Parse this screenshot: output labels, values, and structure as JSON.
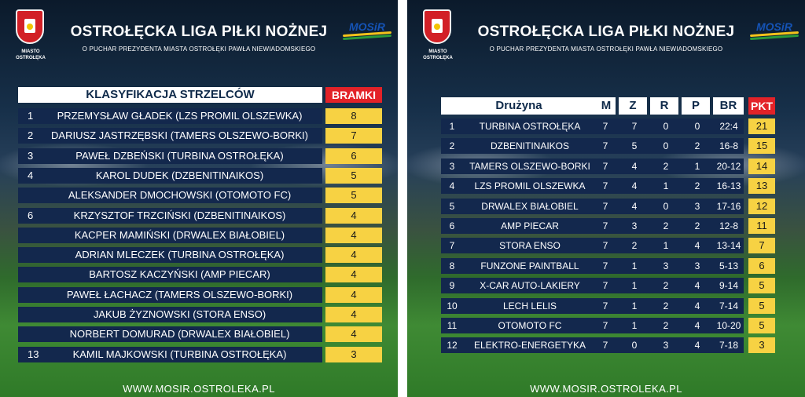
{
  "common": {
    "title": "OSTROŁĘCKA LIGA PIŁKI NOŻNEJ",
    "subtitle": "O PUCHAR PREZYDENTA MIASTA OSTROŁĘKI PAWŁA NIEWIADOMSKIEGO",
    "city_line1": "MIASTO",
    "city_line2": "OSTROŁĘKA",
    "sponsor_logo": "MOSiR",
    "website": "WWW.MOSIR.OSTROLEKA.PL",
    "colors": {
      "navy": "#13284d",
      "yellow": "#f7d243",
      "red": "#e32228"
    }
  },
  "scorers": {
    "heading": "KLASYFIKACJA STRZELCÓW",
    "goals_heading": "BRAMKI",
    "rows": [
      {
        "pos": "1",
        "name": "PRZEMYSŁAW GŁADEK (LZS PROMIL OLSZEWKA)",
        "goals": "8"
      },
      {
        "pos": "2",
        "name": "DARIUSZ JASTRZĘBSKI (TAMERS OLSZEWO-BORKI)",
        "goals": "7"
      },
      {
        "pos": "3",
        "name": "PAWEŁ DZBEŃSKI (TURBINA OSTROŁĘKA)",
        "goals": "6"
      },
      {
        "pos": "4",
        "name": "KAROL DUDEK (DZBENITINAIKOS)",
        "goals": "5"
      },
      {
        "pos": "",
        "name": "ALEKSANDER DMOCHOWSKI (OTOMOTO FC)",
        "goals": "5"
      },
      {
        "pos": "6",
        "name": "KRZYSZTOF TRZCIŃSKI (DZBENITINAIKOS)",
        "goals": "4"
      },
      {
        "pos": "",
        "name": "KACPER MAMIŃSKI (DRWALEX BIAŁOBIEL)",
        "goals": "4"
      },
      {
        "pos": "",
        "name": "ADRIAN MLECZEK (TURBINA OSTROŁĘKA)",
        "goals": "4"
      },
      {
        "pos": "",
        "name": "BARTOSZ KACZYŃSKI (AMP PIECAR)",
        "goals": "4"
      },
      {
        "pos": "",
        "name": "PAWEŁ ŁACHACZ (TAMERS OLSZEWO-BORKI)",
        "goals": "4"
      },
      {
        "pos": "",
        "name": "JAKUB ŻYZNOWSKI (STORA ENSO)",
        "goals": "4"
      },
      {
        "pos": "",
        "name": "NORBERT DOMURAD (DRWALEX BIAŁOBIEL)",
        "goals": "4"
      },
      {
        "pos": "13",
        "name": "KAMIL MAJKOWSKI (TURBINA OSTROŁĘKA)",
        "goals": "3"
      }
    ]
  },
  "standings": {
    "headers": {
      "team": "Drużyna",
      "m": "M",
      "z": "Z",
      "r": "R",
      "p": "P",
      "br": "BR",
      "pkt": "PKT"
    },
    "rows": [
      {
        "pos": "1",
        "team": "TURBINA OSTROŁĘKA",
        "m": "7",
        "z": "7",
        "r": "0",
        "p": "0",
        "br": "22:4",
        "pkt": "21"
      },
      {
        "pos": "2",
        "team": "DZBENITINAIKOS",
        "m": "7",
        "z": "5",
        "r": "0",
        "p": "2",
        "br": "16-8",
        "pkt": "15"
      },
      {
        "pos": "3",
        "team": "TAMERS OLSZEWO-BORKI",
        "m": "7",
        "z": "4",
        "r": "2",
        "p": "1",
        "br": "20-12",
        "pkt": "14"
      },
      {
        "pos": "4",
        "team": "LZS PROMIL OLSZEWKA",
        "m": "7",
        "z": "4",
        "r": "1",
        "p": "2",
        "br": "16-13",
        "pkt": "13"
      },
      {
        "pos": "5",
        "team": "DRWALEX BIAŁOBIEL",
        "m": "7",
        "z": "4",
        "r": "0",
        "p": "3",
        "br": "17-16",
        "pkt": "12"
      },
      {
        "pos": "6",
        "team": "AMP PIECAR",
        "m": "7",
        "z": "3",
        "r": "2",
        "p": "2",
        "br": "12-8",
        "pkt": "11"
      },
      {
        "pos": "7",
        "team": "STORA ENSO",
        "m": "7",
        "z": "2",
        "r": "1",
        "p": "4",
        "br": "13-14",
        "pkt": "7"
      },
      {
        "pos": "8",
        "team": "FUNZONE PAINTBALL",
        "m": "7",
        "z": "1",
        "r": "3",
        "p": "3",
        "br": "5-13",
        "pkt": "6"
      },
      {
        "pos": "9",
        "team": "X-CAR AUTO-LAKIERY",
        "m": "7",
        "z": "1",
        "r": "2",
        "p": "4",
        "br": "9-14",
        "pkt": "5"
      },
      {
        "pos": "10",
        "team": "LECH LELIS",
        "m": "7",
        "z": "1",
        "r": "2",
        "p": "4",
        "br": "7-14",
        "pkt": "5"
      },
      {
        "pos": "11",
        "team": "OTOMOTO FC",
        "m": "7",
        "z": "1",
        "r": "2",
        "p": "4",
        "br": "10-20",
        "pkt": "5"
      },
      {
        "pos": "12",
        "team": "ELEKTRO-ENERGETYKA",
        "m": "7",
        "z": "0",
        "r": "3",
        "p": "4",
        "br": "7-18",
        "pkt": "3"
      }
    ]
  }
}
